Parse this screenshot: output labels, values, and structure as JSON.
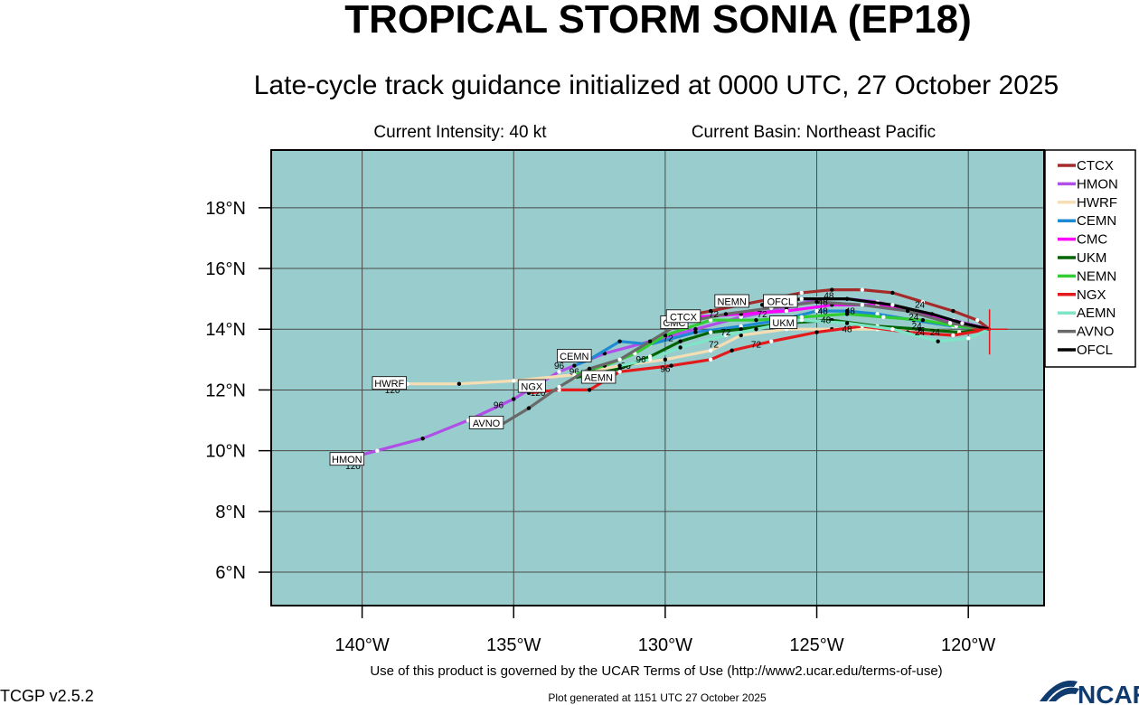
{
  "header": {
    "title": "TROPICAL STORM SONIA (EP18)",
    "subtitle": "Late-cycle track guidance initialized at 0000 UTC, 27 October 2025",
    "intensity": "Current Intensity: 40 kt",
    "basin": "Current Basin: Northeast Pacific"
  },
  "map": {
    "bounds": {
      "lon_min": -143,
      "lon_max": -117.5,
      "lat_min": 4.9,
      "lat_max": 19.9
    },
    "ocean_color": "#99cccc",
    "grid_color": "#4a4a4a",
    "storm_position": {
      "lon": -119.3,
      "lat": 14.0
    },
    "lon_ticks": [
      {
        "value": -140,
        "label": "140°W"
      },
      {
        "value": -135,
        "label": "135°W"
      },
      {
        "value": -130,
        "label": "130°W"
      },
      {
        "value": -125,
        "label": "125°W"
      },
      {
        "value": -120,
        "label": "120°W"
      }
    ],
    "lat_ticks": [
      {
        "value": 18,
        "label": "18°N"
      },
      {
        "value": 16,
        "label": "16°N"
      },
      {
        "value": 14,
        "label": "14°N"
      },
      {
        "value": 12,
        "label": "12°N"
      },
      {
        "value": 10,
        "label": "10°N"
      },
      {
        "value": 8,
        "label": "8°N"
      },
      {
        "value": 6,
        "label": "6°N"
      }
    ]
  },
  "tracks": [
    {
      "name": "CTCX",
      "color": "#a52a2a",
      "points": [
        [
          -119.3,
          14.0
        ],
        [
          -119.7,
          14.3
        ],
        [
          -120.5,
          14.6
        ],
        [
          -121.5,
          14.9
        ],
        [
          -122.5,
          15.2
        ],
        [
          -123.5,
          15.3
        ],
        [
          -124.5,
          15.3
        ],
        [
          -125.5,
          15.2
        ],
        [
          -126.5,
          15.0
        ],
        [
          -127.5,
          14.8
        ],
        [
          -128.5,
          14.6
        ],
        [
          -129.5,
          14.4
        ]
      ],
      "hour_labels": []
    },
    {
      "name": "HMON",
      "color": "#b04fe8",
      "points": [
        [
          -119.3,
          14.0
        ],
        [
          -120.5,
          14.3
        ],
        [
          -121.8,
          14.6
        ],
        [
          -123.0,
          14.9
        ],
        [
          -124.0,
          15.0
        ],
        [
          -125.0,
          15.0
        ],
        [
          -126.0,
          14.7
        ],
        [
          -127.5,
          14.4
        ],
        [
          -129.0,
          14.0
        ],
        [
          -130.5,
          13.6
        ],
        [
          -132.0,
          13.2
        ],
        [
          -133.5,
          12.6
        ],
        [
          -135.0,
          11.7
        ],
        [
          -136.5,
          11.0
        ],
        [
          -138.0,
          10.4
        ],
        [
          -139.5,
          10.0
        ],
        [
          -141.0,
          9.6
        ]
      ],
      "hour_labels": [
        {
          "text": "120",
          "lon": -140.3,
          "lat": 9.4
        }
      ]
    },
    {
      "name": "HWRF",
      "color": "#f5deb3",
      "points": [
        [
          -119.3,
          14.0
        ],
        [
          -120.2,
          13.9
        ],
        [
          -121.5,
          14.0
        ],
        [
          -123.0,
          14.0
        ],
        [
          -124.5,
          14.0
        ],
        [
          -126.0,
          14.0
        ],
        [
          -127.5,
          13.8
        ],
        [
          -128.5,
          13.3
        ],
        [
          -130.0,
          13.0
        ],
        [
          -131.5,
          12.8
        ],
        [
          -133.0,
          12.5
        ],
        [
          -135.0,
          12.3
        ],
        [
          -136.8,
          12.2
        ],
        [
          -138.5,
          12.2
        ],
        [
          -139.5,
          12.1
        ]
      ],
      "hour_labels": [
        {
          "text": "120",
          "lon": -139.0,
          "lat": 11.9
        }
      ]
    },
    {
      "name": "CEMN",
      "color": "#1e8ad4",
      "points": [
        [
          -119.3,
          14.0
        ],
        [
          -120.5,
          14.1
        ],
        [
          -121.8,
          14.3
        ],
        [
          -123.0,
          14.5
        ],
        [
          -124.0,
          14.6
        ],
        [
          -125.0,
          14.6
        ],
        [
          -126.2,
          14.3
        ],
        [
          -127.5,
          14.1
        ],
        [
          -129.0,
          13.9
        ],
        [
          -130.5,
          13.5
        ],
        [
          -131.5,
          13.6
        ],
        [
          -132.5,
          13.0
        ],
        [
          -133.0,
          12.8
        ]
      ],
      "hour_labels": [
        {
          "text": "96",
          "lon": -133.5,
          "lat": 12.7
        }
      ]
    },
    {
      "name": "CMC",
      "color": "#ff00ff",
      "points": [
        [
          -119.3,
          14.0
        ],
        [
          -120.6,
          14.3
        ],
        [
          -121.8,
          14.6
        ],
        [
          -123.0,
          14.8
        ],
        [
          -124.5,
          14.8
        ],
        [
          -126.0,
          14.6
        ],
        [
          -127.5,
          14.5
        ],
        [
          -129.0,
          14.4
        ],
        [
          -130.0,
          14.1
        ]
      ],
      "hour_labels": [
        {
          "text": "72",
          "lon": -129.9,
          "lat": 13.6
        }
      ]
    },
    {
      "name": "UKM",
      "color": "#006400",
      "points": [
        [
          -119.3,
          14.0
        ],
        [
          -120.3,
          13.9
        ],
        [
          -121.6,
          14.0
        ],
        [
          -123.0,
          14.1
        ],
        [
          -124.5,
          14.3
        ],
        [
          -126.0,
          14.2
        ],
        [
          -127.5,
          14.0
        ],
        [
          -128.5,
          13.9
        ],
        [
          -129.5,
          13.6
        ],
        [
          -130.5,
          13.1
        ],
        [
          -131.5,
          12.7
        ],
        [
          -133.0,
          12.4
        ]
      ],
      "hour_labels": [
        {
          "text": "96",
          "lon": -133.0,
          "lat": 12.5
        }
      ]
    },
    {
      "name": "NEMN",
      "color": "#32cd32",
      "points": [
        [
          -119.3,
          14.0
        ],
        [
          -120.4,
          14.1
        ],
        [
          -121.5,
          14.3
        ],
        [
          -122.8,
          14.4
        ],
        [
          -124.0,
          14.5
        ],
        [
          -125.5,
          14.4
        ],
        [
          -127.0,
          14.3
        ],
        [
          -128.5,
          14.3
        ],
        [
          -130.0,
          13.8
        ],
        [
          -131.0,
          13.2
        ],
        [
          -132.0,
          12.8
        ],
        [
          -133.0,
          12.5
        ]
      ],
      "hour_labels": [
        {
          "text": "96",
          "lon": -131.3,
          "lat": 12.7
        }
      ]
    },
    {
      "name": "NGX",
      "color": "#e31a1c",
      "points": [
        [
          -119.3,
          14.0
        ],
        [
          -120.5,
          13.8
        ],
        [
          -122.0,
          13.9
        ],
        [
          -123.5,
          14.1
        ],
        [
          -125.0,
          13.9
        ],
        [
          -126.5,
          13.6
        ],
        [
          -127.8,
          13.3
        ],
        [
          -128.5,
          13.0
        ],
        [
          -129.8,
          12.8
        ],
        [
          -131.5,
          12.6
        ],
        [
          -132.5,
          12.0
        ],
        [
          -133.5,
          12.0
        ],
        [
          -134.5,
          11.9
        ]
      ],
      "hour_labels": [
        {
          "text": "120",
          "lon": -134.2,
          "lat": 11.8
        }
      ]
    },
    {
      "name": "AEMN",
      "color": "#7fe5c7",
      "points": [
        [
          -119.3,
          14.0
        ],
        [
          -120.0,
          13.7
        ],
        [
          -121.0,
          13.6
        ],
        [
          -122.5,
          14.0
        ],
        [
          -124.0,
          14.2
        ],
        [
          -125.5,
          14.3
        ],
        [
          -127.0,
          14.0
        ],
        [
          -128.0,
          13.8
        ],
        [
          -129.5,
          13.4
        ],
        [
          -130.5,
          13.0
        ],
        [
          -131.5,
          12.8
        ]
      ],
      "hour_labels": []
    },
    {
      "name": "AVNO",
      "color": "#696969",
      "points": [
        [
          -119.3,
          14.0
        ],
        [
          -120.6,
          14.2
        ],
        [
          -122.0,
          14.6
        ],
        [
          -123.5,
          14.8
        ],
        [
          -125.0,
          14.9
        ],
        [
          -126.5,
          14.7
        ],
        [
          -128.0,
          14.5
        ],
        [
          -129.5,
          14.2
        ],
        [
          -130.5,
          13.6
        ],
        [
          -131.5,
          13.0
        ],
        [
          -132.5,
          12.7
        ],
        [
          -133.5,
          12.1
        ],
        [
          -134.5,
          11.4
        ],
        [
          -135.5,
          10.8
        ]
      ],
      "hour_labels": []
    },
    {
      "name": "OFCL",
      "color": "#000000",
      "points": [
        [
          -119.3,
          14.0
        ],
        [
          -120.2,
          14.2
        ],
        [
          -121.2,
          14.5
        ],
        [
          -122.5,
          14.8
        ],
        [
          -124.0,
          15.0
        ],
        [
          -125.5,
          15.0
        ],
        [
          -126.8,
          14.8
        ]
      ],
      "hour_labels": []
    }
  ],
  "map_labels": [
    {
      "text": "HMON",
      "lon": -140.5,
      "lat": 9.7
    },
    {
      "text": "HWRF",
      "lon": -139.1,
      "lat": 12.2
    },
    {
      "text": "NGX",
      "lon": -134.4,
      "lat": 12.1
    },
    {
      "text": "AVNO",
      "lon": -135.9,
      "lat": 10.9
    },
    {
      "text": "CEMN",
      "lon": -133.0,
      "lat": 13.1
    },
    {
      "text": "AEMN",
      "lon": -132.2,
      "lat": 12.4
    },
    {
      "text": "CMC",
      "lon": -129.7,
      "lat": 14.2
    },
    {
      "text": "CTCX",
      "lon": -129.4,
      "lat": 14.4
    },
    {
      "text": "NEMN",
      "lon": -127.8,
      "lat": 14.9
    },
    {
      "text": "OFCL",
      "lon": -126.2,
      "lat": 14.9
    },
    {
      "text": "UKM",
      "lon": -126.1,
      "lat": 14.2
    }
  ],
  "hour_markers": [
    {
      "text": "96",
      "lon": -135.5,
      "lat": 11.4
    },
    {
      "text": "96",
      "lon": -130.8,
      "lat": 12.9
    },
    {
      "text": "96",
      "lon": -130.0,
      "lat": 12.6
    },
    {
      "text": "96",
      "lon": -132.2,
      "lat": 12.4
    },
    {
      "text": "72",
      "lon": -128.4,
      "lat": 14.4
    },
    {
      "text": "72",
      "lon": -128.0,
      "lat": 13.8
    },
    {
      "text": "72",
      "lon": -128.4,
      "lat": 13.4
    },
    {
      "text": "72",
      "lon": -127.0,
      "lat": 13.4
    },
    {
      "text": "72",
      "lon": -126.8,
      "lat": 14.4
    },
    {
      "text": "72",
      "lon": -129.0,
      "lat": 14.4
    },
    {
      "text": "48",
      "lon": -124.8,
      "lat": 14.8
    },
    {
      "text": "48",
      "lon": -124.8,
      "lat": 14.5
    },
    {
      "text": "48",
      "lon": -124.6,
      "lat": 15.0
    },
    {
      "text": "48",
      "lon": -123.9,
      "lat": 14.5
    },
    {
      "text": "48",
      "lon": -124.0,
      "lat": 13.9
    },
    {
      "text": "48",
      "lon": -124.7,
      "lat": 14.2
    },
    {
      "text": "24",
      "lon": -121.6,
      "lat": 14.7
    },
    {
      "text": "24",
      "lon": -121.8,
      "lat": 14.3
    },
    {
      "text": "24",
      "lon": -121.7,
      "lat": 14.0
    },
    {
      "text": "24",
      "lon": -121.6,
      "lat": 13.8
    },
    {
      "text": "24",
      "lon": -121.1,
      "lat": 13.8
    }
  ],
  "legend": {
    "items": [
      {
        "name": "CTCX",
        "color": "#a52a2a"
      },
      {
        "name": "HMON",
        "color": "#b04fe8"
      },
      {
        "name": "HWRF",
        "color": "#f5deb3"
      },
      {
        "name": "CEMN",
        "color": "#1e8ad4"
      },
      {
        "name": "CMC",
        "color": "#ff00ff"
      },
      {
        "name": "UKM",
        "color": "#006400"
      },
      {
        "name": "NEMN",
        "color": "#32cd32"
      },
      {
        "name": "NGX",
        "color": "#e31a1c"
      },
      {
        "name": "AEMN",
        "color": "#7fe5c7"
      },
      {
        "name": "AVNO",
        "color": "#696969"
      },
      {
        "name": "OFCL",
        "color": "#000000"
      }
    ]
  },
  "footer": {
    "terms": "Use of this product is governed by the UCAR Terms of Use (http://www2.ucar.edu/terms-of-use)",
    "version": "TCGP v2.5.2",
    "generated": "Plot generated at 1151 UTC   27 October 2025",
    "logo": "NCAR"
  }
}
